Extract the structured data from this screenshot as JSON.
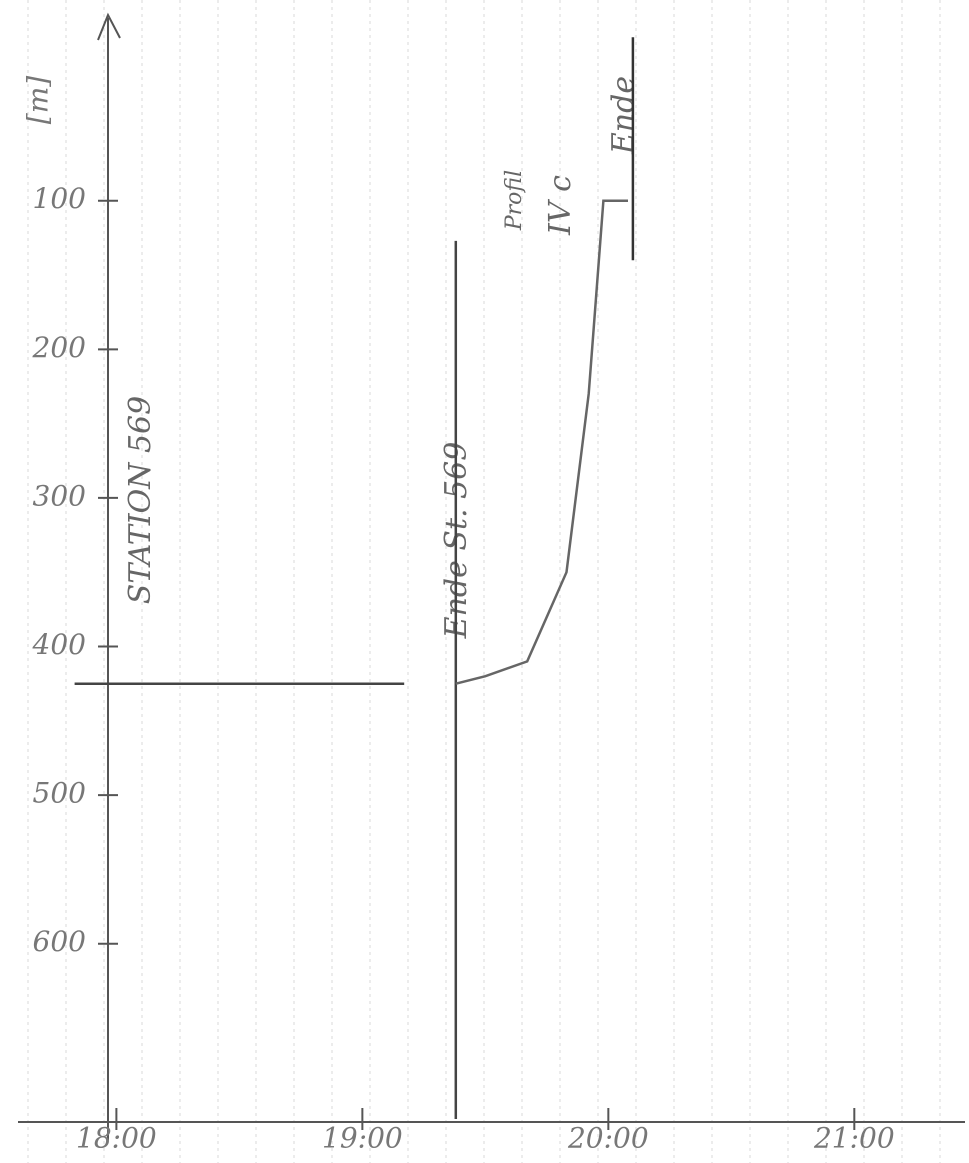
{
  "chart_data": {
    "type": "line",
    "y_label": "[m]",
    "annotations": [
      "STATION 569",
      "Ende St. 569",
      "Profil",
      "IV c",
      "Ende"
    ],
    "xlim": [
      17.6,
      21.45
    ],
    "xticks": [
      {
        "value": 18,
        "label": "18:00"
      },
      {
        "value": 19,
        "label": "19:00"
      },
      {
        "value": 20,
        "label": "20:00"
      },
      {
        "value": 21,
        "label": "21:00"
      }
    ],
    "ylim": [
      720,
      -25
    ],
    "yticks": [
      100,
      200,
      300,
      400,
      500,
      600
    ],
    "grid": true,
    "series": [
      {
        "color": "#444444",
        "x": [
          17.83,
          19.17
        ],
        "values": [
          425,
          425
        ]
      },
      {
        "color": "#444444",
        "x": [
          19.38,
          19.38
        ],
        "values": [
          127,
          718
        ]
      },
      {
        "color": "#666666",
        "x": [
          19.38,
          19.5,
          19.67,
          19.83,
          19.92,
          19.98,
          20.08
        ],
        "values": [
          425,
          420,
          410,
          350,
          230,
          100,
          100
        ]
      },
      {
        "color": "#333333",
        "x": [
          20.1,
          20.1
        ],
        "values": [
          -10,
          140
        ]
      }
    ]
  }
}
